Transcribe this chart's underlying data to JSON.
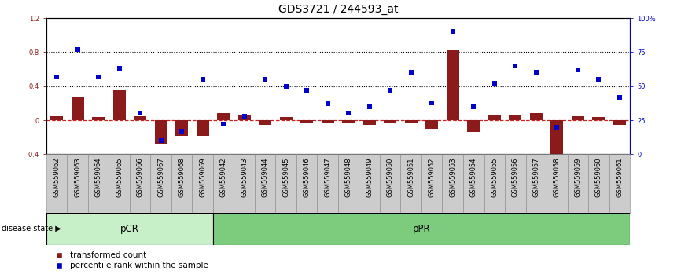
{
  "title": "GDS3721 / 244593_at",
  "samples": [
    "GSM559062",
    "GSM559063",
    "GSM559064",
    "GSM559065",
    "GSM559066",
    "GSM559067",
    "GSM559068",
    "GSM559069",
    "GSM559042",
    "GSM559043",
    "GSM559044",
    "GSM559045",
    "GSM559046",
    "GSM559047",
    "GSM559048",
    "GSM559049",
    "GSM559050",
    "GSM559051",
    "GSM559052",
    "GSM559053",
    "GSM559054",
    "GSM559055",
    "GSM559056",
    "GSM559057",
    "GSM559058",
    "GSM559059",
    "GSM559060",
    "GSM559061"
  ],
  "transformed_count": [
    0.05,
    0.28,
    0.04,
    0.35,
    0.05,
    -0.28,
    -0.18,
    -0.18,
    0.08,
    0.06,
    -0.05,
    0.04,
    -0.04,
    -0.03,
    -0.04,
    -0.05,
    -0.04,
    -0.04,
    -0.1,
    0.82,
    -0.14,
    0.07,
    0.07,
    0.08,
    -0.52,
    0.05,
    0.04,
    -0.05
  ],
  "percentile_rank": [
    57,
    77,
    57,
    63,
    30,
    10,
    17,
    55,
    22,
    28,
    55,
    50,
    47,
    37,
    30,
    35,
    47,
    60,
    38,
    90,
    35,
    52,
    65,
    60,
    20,
    62,
    55,
    42
  ],
  "group_labels": [
    "pCR",
    "pPR"
  ],
  "group_sizes": [
    8,
    20
  ],
  "group_color_pcr": "#c8f0c8",
  "group_color_ppr": "#7dcc7d",
  "bar_color": "#8b1a1a",
  "scatter_color": "#0000cc",
  "ylim_left": [
    -0.4,
    1.2
  ],
  "ylim_right": [
    0,
    100
  ],
  "title_fontsize": 10,
  "tick_fontsize": 6,
  "group_fontsize": 8.5,
  "legend_fontsize": 7.5
}
